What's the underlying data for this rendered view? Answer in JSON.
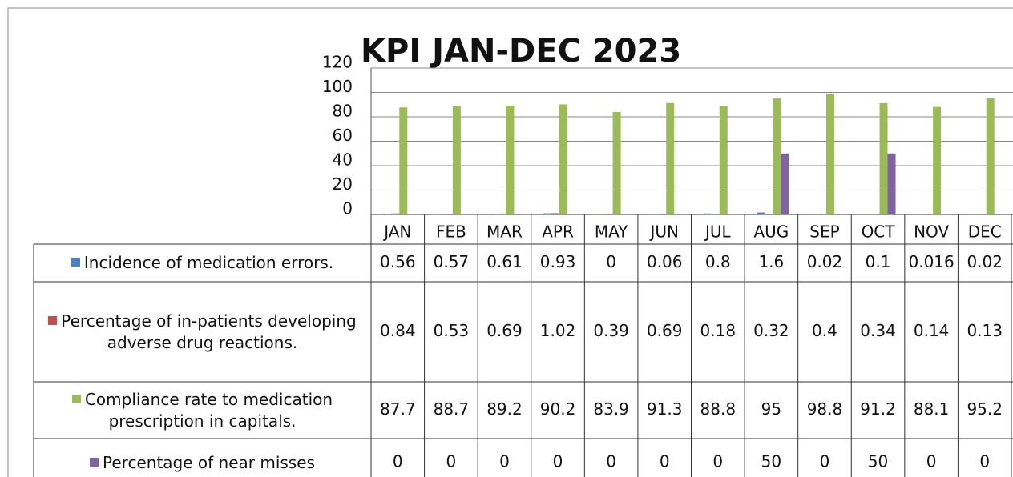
{
  "chart_data": {
    "type": "bar",
    "title": "KPI JAN-DEC 2023",
    "categories": [
      "JAN",
      "FEB",
      "MAR",
      "APR",
      "MAY",
      "JUN",
      "JUL",
      "AUG",
      "SEP",
      "OCT",
      "NOV",
      "DEC"
    ],
    "series": [
      {
        "name": "Incidence of medication errors.",
        "color": "#4f81bd",
        "values": [
          0.56,
          0.57,
          0.61,
          0.93,
          0,
          0.06,
          0.8,
          1.6,
          0.02,
          0.1,
          0.016,
          0.02
        ]
      },
      {
        "name": "Percentage of in-patients developing adverse drug reactions.",
        "color": "#c0504d",
        "values": [
          0.84,
          0.53,
          0.69,
          1.02,
          0.39,
          0.69,
          0.18,
          0.32,
          0.4,
          0.34,
          0.14,
          0.13
        ]
      },
      {
        "name": "Compliance rate to medication prescription in capitals.",
        "color": "#9bbb59",
        "values": [
          87.7,
          88.7,
          89.2,
          90.2,
          83.9,
          91.3,
          88.8,
          95,
          98.8,
          91.2,
          88.1,
          95.2
        ]
      },
      {
        "name": "Percentage of near misses",
        "color": "#8064a2",
        "values": [
          0,
          0,
          0,
          0,
          0,
          0,
          0,
          50,
          0,
          50,
          0,
          0
        ]
      }
    ],
    "ylim": [
      0,
      120
    ],
    "yticks": [
      0,
      20,
      40,
      60,
      80,
      100,
      120
    ],
    "grid": true,
    "legend": "table"
  }
}
